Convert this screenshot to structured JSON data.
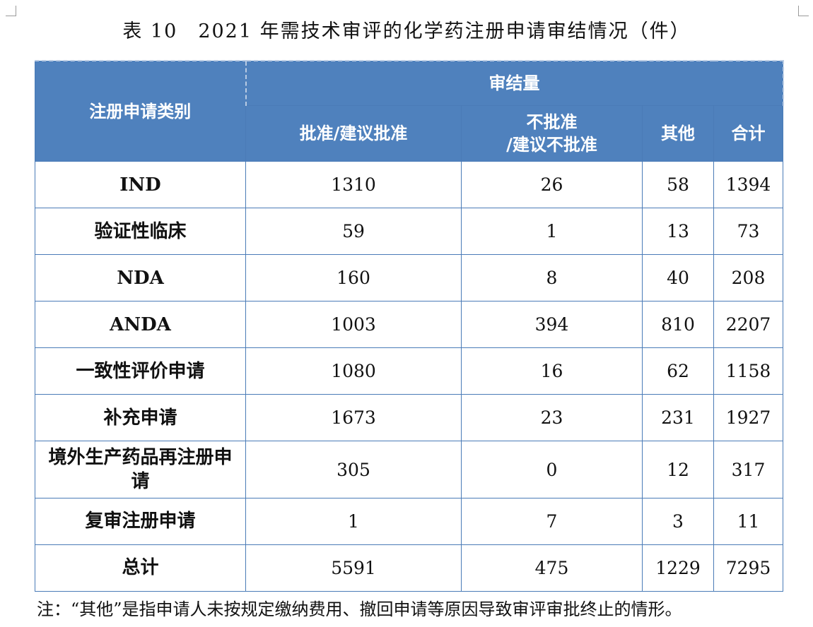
{
  "title": "表 10　2021 年需技术审评的化学药注册申请审结情况（件）",
  "header": {
    "category_col": "注册申请类别",
    "group": "审结量",
    "columns": [
      "批准/建议批准",
      "不批准\n/建议不批准",
      "其他",
      "合计"
    ]
  },
  "rows": [
    {
      "category": "IND",
      "approved": "1310",
      "rejected": "26",
      "other": "58",
      "total": "1394"
    },
    {
      "category": "验证性临床",
      "approved": "59",
      "rejected": "1",
      "other": "13",
      "total": "73"
    },
    {
      "category": "NDA",
      "approved": "160",
      "rejected": "8",
      "other": "40",
      "total": "208"
    },
    {
      "category": "ANDA",
      "approved": "1003",
      "rejected": "394",
      "other": "810",
      "total": "2207"
    },
    {
      "category": "一致性评价申请",
      "approved": "1080",
      "rejected": "16",
      "other": "62",
      "total": "1158"
    },
    {
      "category": "补充申请",
      "approved": "1673",
      "rejected": "23",
      "other": "231",
      "total": "1927"
    },
    {
      "category": "境外生产药品再注册申请",
      "approved": "305",
      "rejected": "0",
      "other": "12",
      "total": "317"
    },
    {
      "category": "复审注册申请",
      "approved": "1",
      "rejected": "7",
      "other": "3",
      "total": "11"
    },
    {
      "category": "总计",
      "approved": "5591",
      "rejected": "475",
      "other": "1229",
      "total": "7295"
    }
  ],
  "note": "注：“其他”是指申请人未按规定缴纳费用、撤回申请等原因导致审评审批终止的情形。",
  "colors": {
    "header_bg": "#4f81bd",
    "border": "#4a7bb7"
  }
}
